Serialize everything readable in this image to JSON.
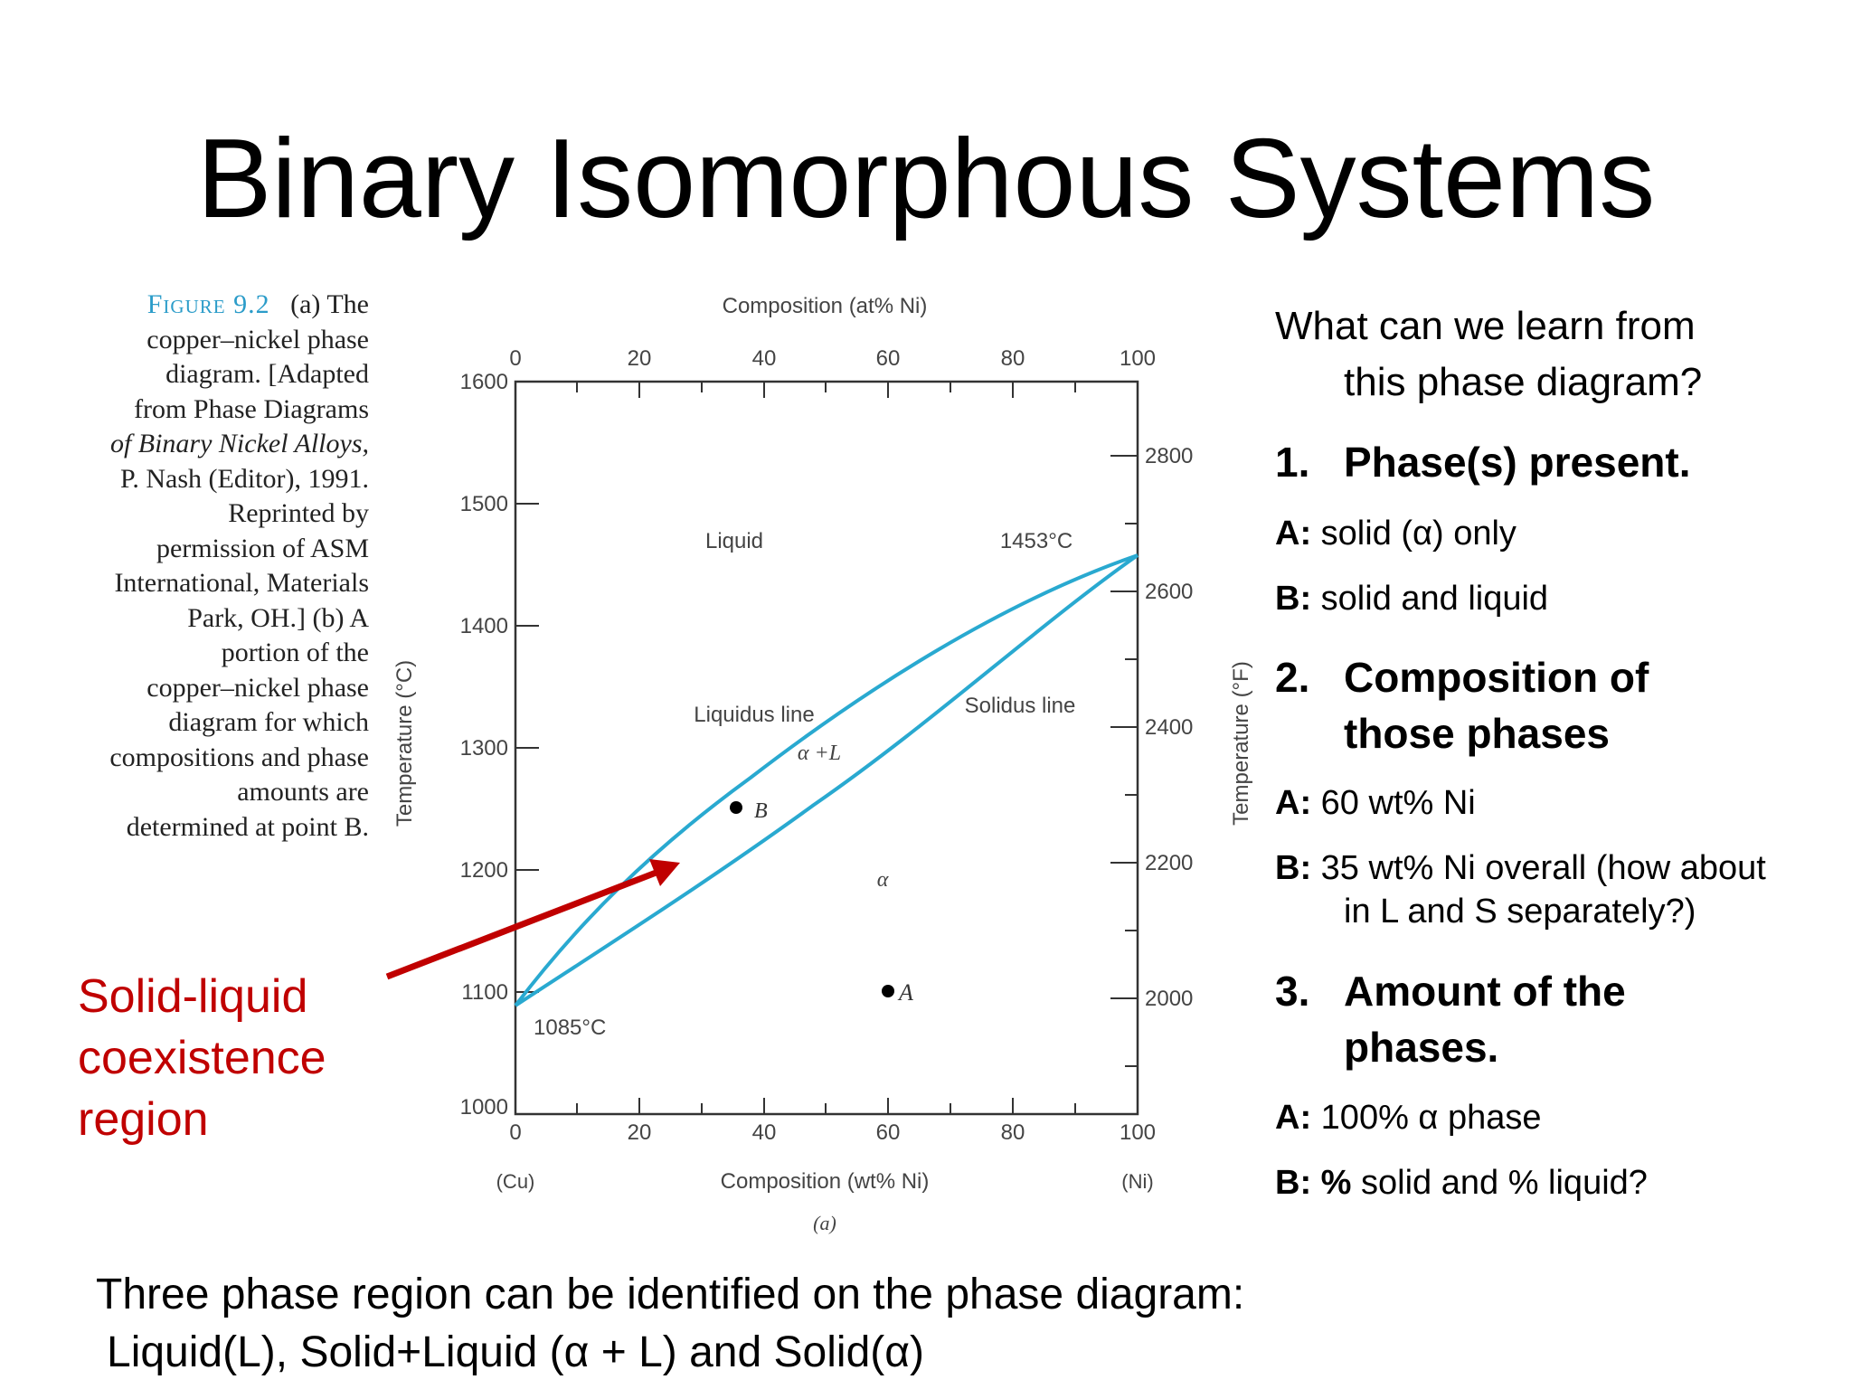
{
  "slide": {
    "title": "Binary Isomorphous Systems"
  },
  "caption": {
    "figure_label": "Figure 9.2",
    "lines": [
      "(a) The",
      "copper–nickel phase",
      "diagram. [Adapted",
      "from Phase Diagrams",
      "of Binary Nickel Alloys,",
      "P. Nash (Editor), 1991.",
      "Reprinted by",
      "permission of ASM",
      "International, Materials",
      "Park, OH.] (b) A",
      "portion of the",
      "copper–nickel phase",
      "diagram for which",
      "compositions and phase",
      "amounts are",
      "determined at point B."
    ]
  },
  "diagram": {
    "top_axis_title": "Composition (at% Ni)",
    "top_ticks": [
      "0",
      "20",
      "40",
      "60",
      "80",
      "100"
    ],
    "bottom_ticks": [
      "0",
      "20",
      "40",
      "60",
      "80",
      "100"
    ],
    "bottom_axis_title": "Composition (wt% Ni)",
    "left_end_label": "(Cu)",
    "right_end_label": "(Ni)",
    "sub_label": "(a)",
    "left_axis_title": "Temperature (°C)",
    "left_ticks": [
      "1600",
      "1500",
      "1400",
      "1300",
      "1200",
      "1100",
      "1000"
    ],
    "right_axis_title": "Temperature (°F)",
    "right_ticks": [
      "2800",
      "2600",
      "2400",
      "2200",
      "2000"
    ],
    "region_liquid": "Liquid",
    "region_alpha_l": "α +L",
    "region_alpha": "α",
    "label_liquidus": "Liquidus line",
    "label_solidus": "Solidus line",
    "melt_ni": "1453°C",
    "melt_cu": "1085°C",
    "point_a": "A",
    "point_b": "B",
    "line_color": "#29a9d0",
    "arrow_color": "#c00000"
  },
  "callout": {
    "lines": [
      "Solid-liquid",
      "coexistence",
      "region"
    ]
  },
  "questions": {
    "intro_line1": "What can we learn from",
    "intro_line2": "this phase diagram?",
    "q1_num": "1.",
    "q1_text": "Phase(s) present.",
    "q1_a_key": "A:",
    "q1_a_val": "solid (α) only",
    "q1_b_key": "B:",
    "q1_b_val": "solid and liquid",
    "q2_num": "2.",
    "q2_text_line1": "Composition of",
    "q2_text_line2": "those phases",
    "q2_a_key": "A:",
    "q2_a_val": "60 wt% Ni",
    "q2_b_key": "B:",
    "q2_b_val": "35 wt% Ni overall (how about",
    "q2_b_val2": "in L and S separately?)",
    "q3_num": "3.",
    "q3_text_line1": "Amount of the",
    "q3_text_line2": "phases.",
    "q3_a_key": "A:",
    "q3_a_val": "100% α phase",
    "q3_b_key": "B:",
    "q3_b_val_bold": "%",
    "q3_b_val": "solid and % liquid?"
  },
  "footer": {
    "line1": "Three phase region can be identified on the phase diagram:",
    "line2": "Liquid(L), Solid+Liquid (α + L) and Solid(α)"
  }
}
